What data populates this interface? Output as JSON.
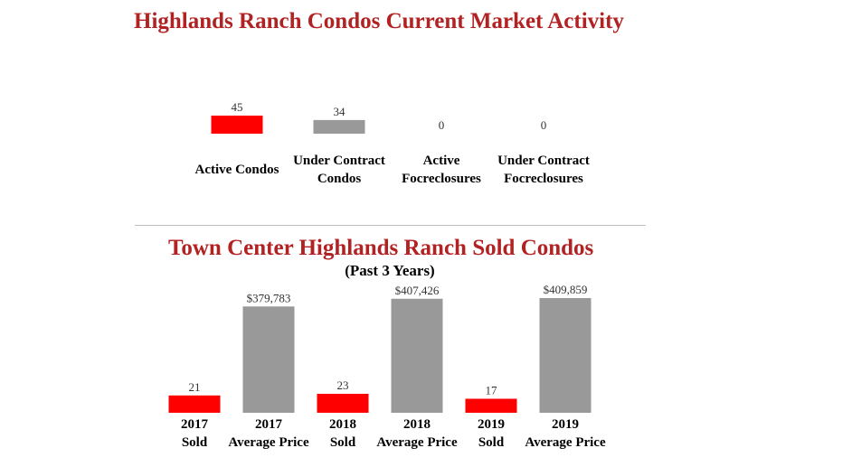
{
  "page": {
    "title": "Highlands Ranch Condos Current Market Activity",
    "section2_title": "Town Center Highlands Ranch Sold Condos",
    "section2_subtitle": "(Past 3 Years)"
  },
  "chart_data": [
    {
      "type": "bar",
      "title": "Highlands Ranch Condos Current Market Activity",
      "categories": [
        [
          "Active Condos"
        ],
        [
          "Under Contract",
          "Condos"
        ],
        [
          "Active",
          "Focreclosures"
        ],
        [
          "Under Contract",
          "Focreclosures"
        ]
      ],
      "values": [
        45,
        34,
        0,
        0
      ],
      "labels": [
        "45",
        "34",
        "0",
        "0"
      ],
      "colors": [
        "#ff0000",
        "#999999",
        "#ff0000",
        "#999999"
      ]
    },
    {
      "type": "bar",
      "title": "Town Center Highlands Ranch Sold Condos",
      "subtitle": "(Past 3 Years)",
      "categories": [
        [
          "2017",
          "Sold"
        ],
        [
          "2017",
          "Average Price"
        ],
        [
          "2018",
          "Sold"
        ],
        [
          "2018",
          "Average Price"
        ],
        [
          "2019",
          "Sold"
        ],
        [
          "2019",
          "Average Price"
        ]
      ],
      "values": [
        21,
        379783,
        23,
        407426,
        17,
        409859
      ],
      "labels": [
        "21",
        "$379,783",
        "23",
        "$407,426",
        "17",
        "$409,859"
      ],
      "colors": [
        "#ff0000",
        "#999999",
        "#ff0000",
        "#999999",
        "#ff0000",
        "#999999"
      ]
    }
  ]
}
